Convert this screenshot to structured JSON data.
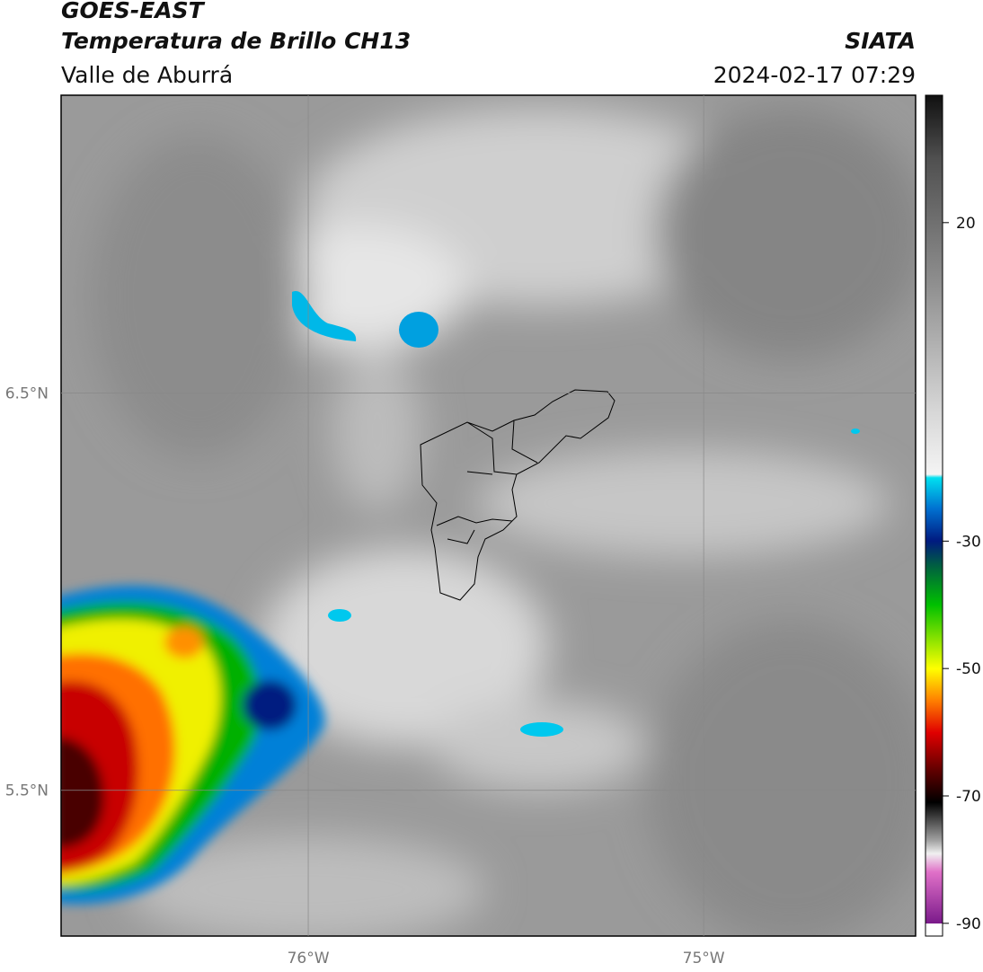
{
  "header": {
    "satellite": "GOES-EAST",
    "product": "Temperatura de Brillo CH13",
    "region": "Valle de Aburrá",
    "agency": "SIATA",
    "datetime": "2024-02-17 07:29"
  },
  "map": {
    "xlim": [
      -76.625,
      -74.464
    ],
    "ylim": [
      5.133,
      7.25
    ],
    "xticks": [
      {
        "value": -76,
        "label": "76°W"
      },
      {
        "value": -75,
        "label": "75°W"
      }
    ],
    "yticks": [
      {
        "value": 6.5,
        "label": "6.5°N"
      },
      {
        "value": 5.5,
        "label": "5.5°N"
      }
    ],
    "grid": true
  },
  "colorbar": {
    "lim": [
      -92,
      40
    ],
    "ticks": [
      20,
      -30,
      -50,
      -70,
      -90
    ]
  }
}
